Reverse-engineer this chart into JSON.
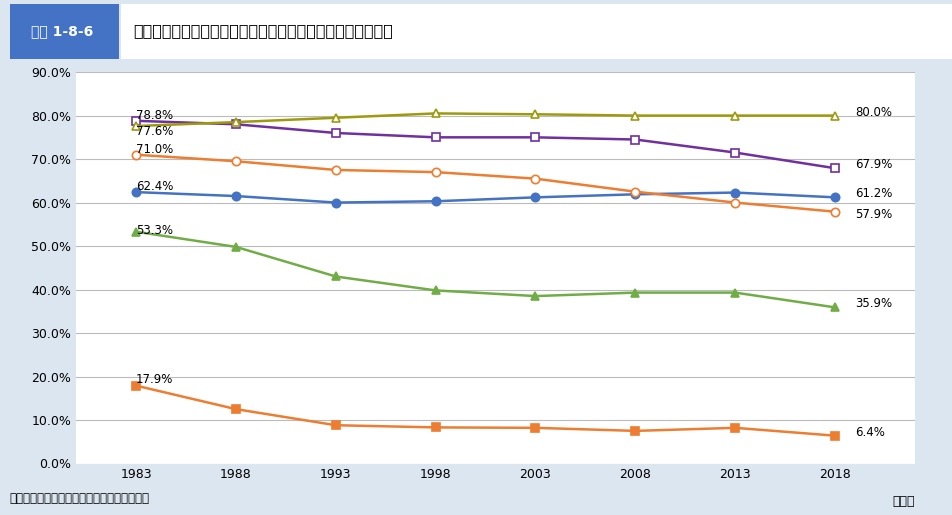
{
  "years": [
    1983,
    1988,
    1993,
    1998,
    2003,
    2008,
    2013,
    2018
  ],
  "series": {
    "全体": {
      "values": [
        62.4,
        61.5,
        60.0,
        60.3,
        61.2,
        61.9,
        62.3,
        61.2
      ],
      "color": "#4472c4",
      "marker": "o",
      "marker_fill": "#4472c4",
      "linewidth": 1.8,
      "label_start": "62.4%",
      "label_end": "61.2%"
    },
    "30歳未満": {
      "values": [
        17.9,
        12.5,
        8.8,
        8.3,
        8.2,
        7.5,
        8.2,
        6.4
      ],
      "color": "#ed7d31",
      "marker": "s",
      "marker_fill": "#ed7d31",
      "linewidth": 1.8,
      "label_start": "17.9%",
      "label_end": "6.4%"
    },
    "30〜39歳": {
      "values": [
        53.3,
        49.8,
        43.0,
        39.8,
        38.5,
        39.3,
        39.3,
        35.9
      ],
      "color": "#70ad47",
      "marker": "^",
      "marker_fill": "#70ad47",
      "linewidth": 1.8,
      "label_start": "53.3%",
      "label_end": "35.9%"
    },
    "40〜49歳": {
      "values": [
        71.0,
        69.5,
        67.5,
        67.0,
        65.5,
        62.5,
        60.0,
        57.9
      ],
      "color": "#ed7d31",
      "marker": "o",
      "marker_fill": "white",
      "linewidth": 1.8,
      "label_start": "71.0%",
      "label_end": "57.9%"
    },
    "50〜59歳": {
      "values": [
        78.8,
        78.0,
        76.0,
        75.0,
        75.0,
        74.5,
        71.5,
        67.9
      ],
      "color": "#7030a0",
      "marker": "s",
      "marker_fill": "white",
      "linewidth": 1.8,
      "label_start": "78.8%",
      "label_end": "67.9%"
    },
    "60歳以上": {
      "values": [
        77.6,
        78.5,
        79.5,
        80.5,
        80.3,
        80.0,
        80.0,
        80.0
      ],
      "color": "#9e9a0e",
      "marker": "^",
      "marker_fill": "white",
      "linewidth": 1.8,
      "label_start": "77.6%",
      "label_end": "80.0%"
    }
  },
  "title": "持家世帯比率の推移　（家計を主に支える者の年齢階級別）",
  "header_label": "図表 1-8-6",
  "footer": "資料：総務省統計局「住宅・土地統計調査」",
  "xlabel": "（年）",
  "ylim": [
    0.0,
    90.0
  ],
  "yticks": [
    0.0,
    10.0,
    20.0,
    30.0,
    40.0,
    50.0,
    60.0,
    70.0,
    80.0,
    90.0
  ],
  "background_color": "#dce6f1",
  "plot_bg_color": "#ffffff",
  "header_bg": "#bdd7ee",
  "header_label_bg": "#4472c4"
}
